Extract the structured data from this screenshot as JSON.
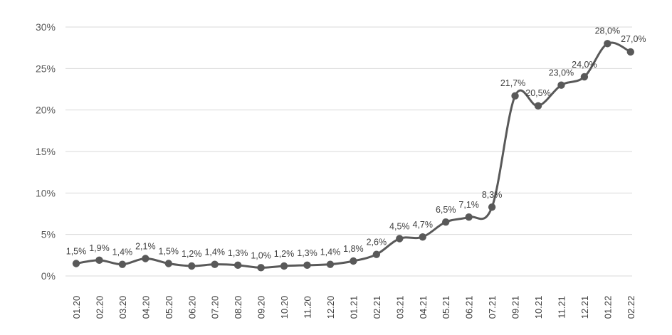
{
  "chart_data": {
    "type": "line",
    "title": "",
    "xlabel": "",
    "ylabel": "",
    "categories": [
      "01.20",
      "02.20",
      "03.20",
      "04.20",
      "05.20",
      "06.20",
      "07.20",
      "08.20",
      "09.20",
      "10.20",
      "11.20",
      "12.20",
      "01.21",
      "02.21",
      "03.21",
      "04.21",
      "05.21",
      "06.21",
      "07.21",
      "09.21",
      "10.21",
      "11.21",
      "12.21",
      "01.22",
      "02.22"
    ],
    "values": [
      1.5,
      1.9,
      1.4,
      2.1,
      1.5,
      1.2,
      1.4,
      1.3,
      1.0,
      1.2,
      1.3,
      1.4,
      1.8,
      2.6,
      4.5,
      4.7,
      6.5,
      7.1,
      8.3,
      21.7,
      20.5,
      23.0,
      24.0,
      28.0,
      27.0
    ],
    "data_labels": [
      "1,5%",
      "1,9%",
      "1,4%",
      "2,1%",
      "1,5%",
      "1,2%",
      "1,4%",
      "1,3%",
      "1,0%",
      "1,2%",
      "1,3%",
      "1,4%",
      "1,8%",
      "2,6%",
      "4,5%",
      "4,7%",
      "6,5%",
      "7,1%",
      "8,3%",
      "21,7%",
      "20,5%",
      "23,0%",
      "24,0%",
      "28,0%",
      "27,0%"
    ],
    "y_ticks": [
      0,
      5,
      10,
      15,
      20,
      25,
      30
    ],
    "y_tick_labels": [
      "0%",
      "5%",
      "10%",
      "15%",
      "20%",
      "25%",
      "30%"
    ],
    "ylim": [
      0,
      30
    ],
    "grid": true,
    "legend": "none",
    "line_color": "#595959",
    "grid_color": "#d9d9d9"
  }
}
